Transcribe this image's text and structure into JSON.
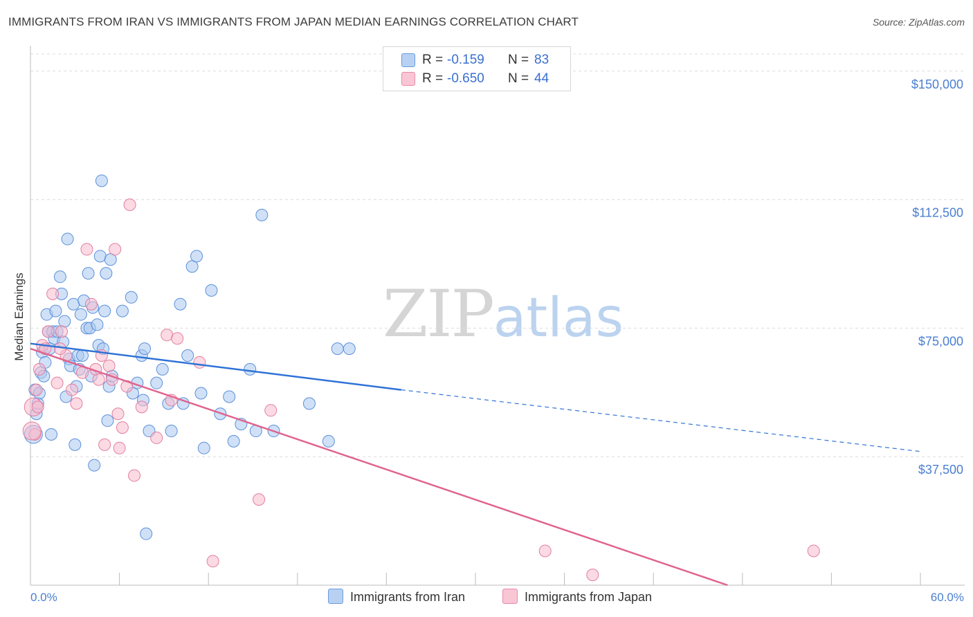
{
  "title": "IMMIGRANTS FROM IRAN VS IMMIGRANTS FROM JAPAN MEDIAN EARNINGS CORRELATION CHART",
  "source": "Source: ZipAtlas.com",
  "watermark": {
    "zip": "ZIP",
    "atlas": "atlas"
  },
  "legend": {
    "r_label": "R =",
    "n_label": "N =",
    "rows": [
      {
        "r": "-0.159",
        "n": "83",
        "color": "#b8d1f3",
        "border": "#6a9ae0"
      },
      {
        "r": "-0.650",
        "n": "44",
        "color": "#f9c6d5",
        "border": "#e88aa8"
      }
    ]
  },
  "bottom_legend": [
    "Immigrants from Iran",
    "Immigrants from Japan"
  ],
  "colors": {
    "iran_fill": "#a9c8f0",
    "iran_stroke": "#5b8fd9",
    "iran_line": "#2f72d6",
    "japan_fill": "#f7bccd",
    "japan_stroke": "#e27ea0",
    "japan_line": "#e0648f",
    "grid": "#dcdcdc",
    "tick_text": "#4a7fd1"
  },
  "chart_data": {
    "type": "scatter",
    "title": "IMMIGRANTS FROM IRAN VS IMMIGRANTS FROM JAPAN MEDIAN EARNINGS CORRELATION CHART",
    "xlabel": "",
    "ylabel": "Median Earnings",
    "xlim": [
      0,
      60
    ],
    "ylim": [
      0,
      155000
    ],
    "x_tick_labels": [
      "0.0%",
      "60.0%"
    ],
    "y_ticks": [
      37500,
      75000,
      112500,
      150000
    ],
    "y_tick_labels": [
      "$37,500",
      "$75,000",
      "$112,500",
      "$150,000"
    ],
    "grid": "horizontal dashed",
    "legend_placement": "top-center",
    "series": [
      {
        "name": "Immigrants from Iran",
        "r": -0.159,
        "n": 83,
        "trend": {
          "x0": 0,
          "y0": 70500,
          "x_solid_end": 25,
          "y_solid_end": 57000,
          "x1": 60,
          "y1": 39000
        },
        "points": [
          [
            0.3,
            57000
          ],
          [
            0.4,
            50000
          ],
          [
            0.5,
            53000
          ],
          [
            0.6,
            56000
          ],
          [
            0.7,
            62000
          ],
          [
            0.8,
            68000
          ],
          [
            0.9,
            61000
          ],
          [
            1.0,
            65000
          ],
          [
            1.1,
            79000
          ],
          [
            1.2,
            74000
          ],
          [
            1.3,
            69000
          ],
          [
            1.4,
            44000
          ],
          [
            1.5,
            74000
          ],
          [
            1.6,
            72000
          ],
          [
            1.7,
            80000
          ],
          [
            1.8,
            74000
          ],
          [
            2.0,
            90000
          ],
          [
            2.1,
            85000
          ],
          [
            2.2,
            71000
          ],
          [
            2.3,
            77000
          ],
          [
            2.4,
            55000
          ],
          [
            2.5,
            101000
          ],
          [
            2.6,
            66000
          ],
          [
            2.7,
            64000
          ],
          [
            2.9,
            82000
          ],
          [
            3.0,
            41000
          ],
          [
            3.1,
            58000
          ],
          [
            3.2,
            67000
          ],
          [
            3.3,
            63000
          ],
          [
            3.4,
            79000
          ],
          [
            3.5,
            67000
          ],
          [
            3.6,
            83000
          ],
          [
            3.8,
            75000
          ],
          [
            3.9,
            91000
          ],
          [
            4.0,
            75000
          ],
          [
            4.1,
            61000
          ],
          [
            4.2,
            81000
          ],
          [
            4.3,
            35000
          ],
          [
            4.5,
            76000
          ],
          [
            4.6,
            70000
          ],
          [
            4.7,
            96000
          ],
          [
            4.8,
            118000
          ],
          [
            4.9,
            69000
          ],
          [
            5.0,
            80000
          ],
          [
            5.1,
            91000
          ],
          [
            5.2,
            48000
          ],
          [
            5.3,
            58000
          ],
          [
            5.4,
            95000
          ],
          [
            5.5,
            61000
          ],
          [
            6.2,
            80000
          ],
          [
            6.8,
            84000
          ],
          [
            6.9,
            56000
          ],
          [
            7.2,
            59000
          ],
          [
            7.5,
            67000
          ],
          [
            7.6,
            54000
          ],
          [
            7.7,
            69000
          ],
          [
            7.8,
            15000
          ],
          [
            8.0,
            45000
          ],
          [
            8.5,
            59000
          ],
          [
            8.9,
            63000
          ],
          [
            9.3,
            53000
          ],
          [
            9.5,
            45000
          ],
          [
            10.1,
            82000
          ],
          [
            10.3,
            53000
          ],
          [
            10.6,
            67000
          ],
          [
            10.9,
            93000
          ],
          [
            11.2,
            96000
          ],
          [
            11.5,
            56000
          ],
          [
            11.7,
            40000
          ],
          [
            12.2,
            86000
          ],
          [
            12.8,
            50000
          ],
          [
            13.4,
            55000
          ],
          [
            13.7,
            42000
          ],
          [
            14.2,
            47000
          ],
          [
            14.8,
            63000
          ],
          [
            15.2,
            45000
          ],
          [
            15.6,
            108000
          ],
          [
            16.4,
            45000
          ],
          [
            18.8,
            53000
          ],
          [
            20.1,
            42000
          ],
          [
            20.7,
            69000
          ],
          [
            21.5,
            69000
          ],
          [
            0.2,
            44000
          ]
        ]
      },
      {
        "name": "Immigrants from Japan",
        "r": -0.65,
        "n": 44,
        "trend": {
          "x0": 0,
          "y0": 69000,
          "x1": 47,
          "y1": 0
        },
        "points": [
          [
            0.2,
            52000
          ],
          [
            0.3,
            44000
          ],
          [
            0.4,
            57000
          ],
          [
            0.5,
            52000
          ],
          [
            0.6,
            63000
          ],
          [
            0.8,
            70000
          ],
          [
            1.0,
            69000
          ],
          [
            1.2,
            74000
          ],
          [
            1.5,
            85000
          ],
          [
            1.8,
            59000
          ],
          [
            2.1,
            74000
          ],
          [
            2.4,
            67000
          ],
          [
            2.8,
            57000
          ],
          [
            3.1,
            53000
          ],
          [
            3.5,
            62000
          ],
          [
            3.8,
            98000
          ],
          [
            4.1,
            82000
          ],
          [
            4.4,
            63000
          ],
          [
            4.6,
            60000
          ],
          [
            4.8,
            67000
          ],
          [
            5.0,
            41000
          ],
          [
            5.3,
            64000
          ],
          [
            5.5,
            60000
          ],
          [
            5.9,
            50000
          ],
          [
            6.2,
            46000
          ],
          [
            5.7,
            98000
          ],
          [
            6.5,
            58000
          ],
          [
            6.7,
            111000
          ],
          [
            7.0,
            32000
          ],
          [
            7.5,
            52000
          ],
          [
            8.5,
            43000
          ],
          [
            9.2,
            73000
          ],
          [
            9.5,
            54000
          ],
          [
            9.9,
            72000
          ],
          [
            11.4,
            65000
          ],
          [
            12.3,
            7000
          ],
          [
            15.4,
            25000
          ],
          [
            16.2,
            51000
          ],
          [
            6.0,
            40000
          ],
          [
            34.7,
            10000
          ],
          [
            37.9,
            3000
          ],
          [
            52.8,
            10000
          ],
          [
            0.1,
            45000
          ],
          [
            2.0,
            69000
          ]
        ]
      }
    ]
  }
}
